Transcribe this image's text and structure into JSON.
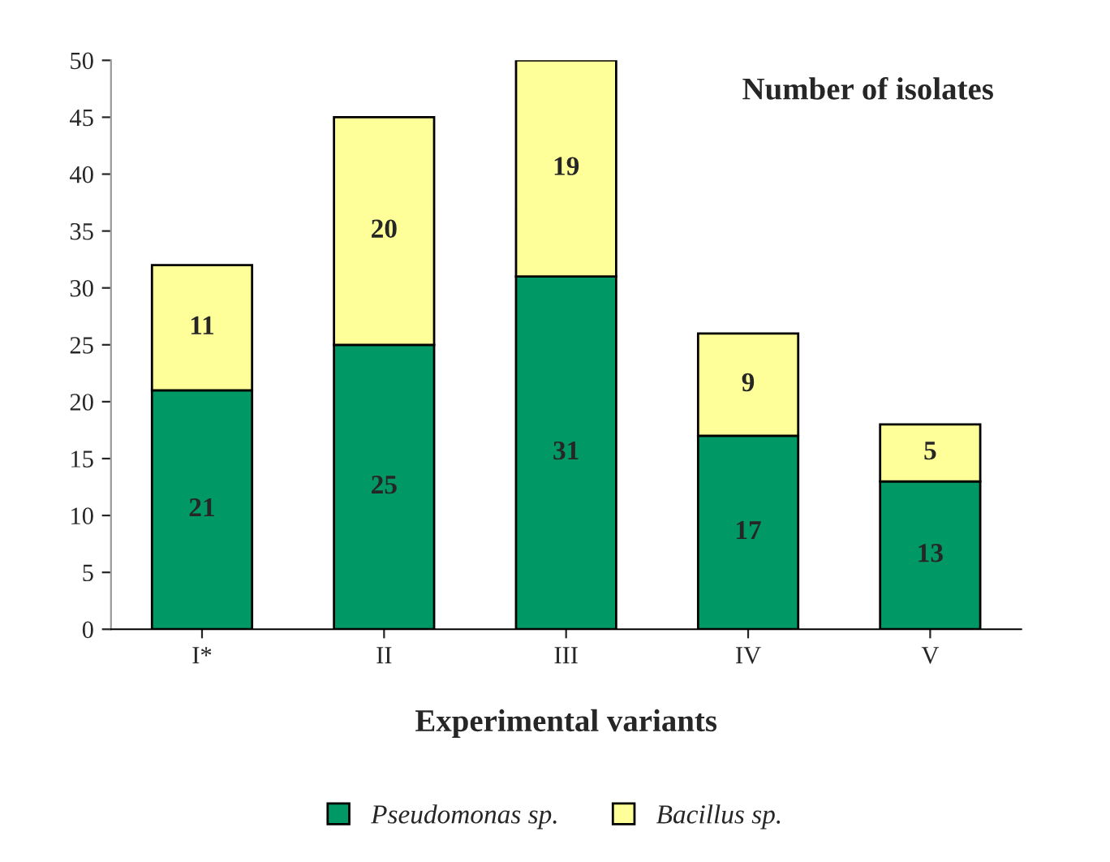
{
  "chart_data": {
    "type": "bar",
    "stacked": true,
    "title": "Number of isolates",
    "xlabel": "Experimental variants",
    "categories": [
      "I*",
      "II",
      "III",
      "IV",
      "V"
    ],
    "series": [
      {
        "name": "Pseudomonas sp.",
        "color": "#009966",
        "values": [
          21,
          25,
          31,
          17,
          13
        ]
      },
      {
        "name": "Bacillus sp.",
        "color": "#ffff99",
        "values": [
          11,
          20,
          19,
          9,
          5
        ]
      }
    ],
    "ylim": [
      0,
      50
    ],
    "yticks": [
      0,
      5,
      10,
      15,
      20,
      25,
      30,
      35,
      40,
      45,
      50
    ],
    "data_labels": true,
    "legend": "bottom",
    "grid": false
  }
}
